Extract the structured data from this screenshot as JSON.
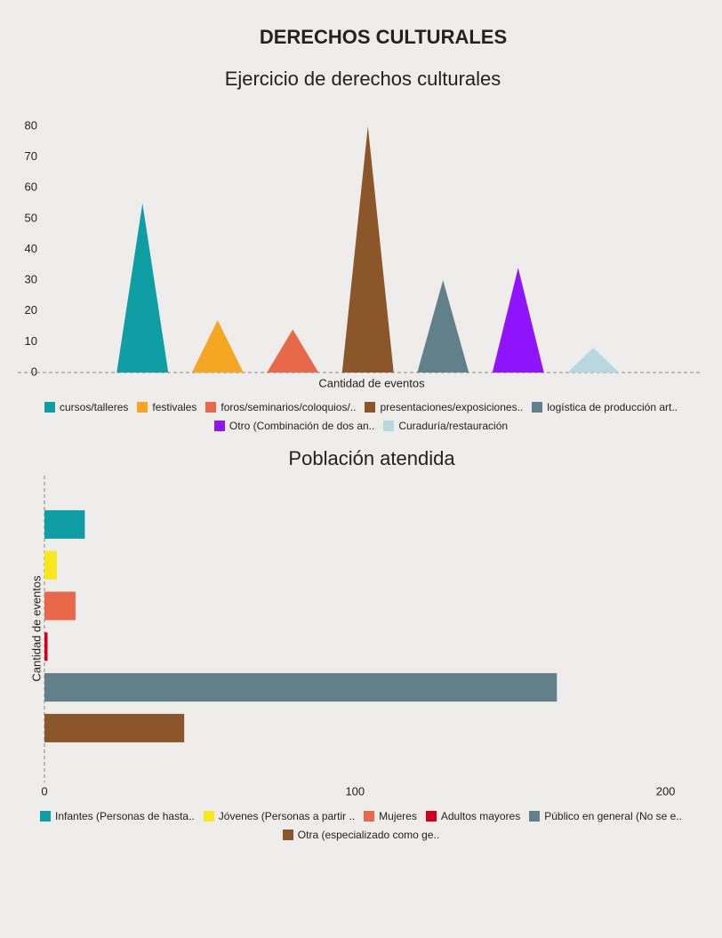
{
  "title": "DERECHOS CULTURALES",
  "chart_data": [
    {
      "type": "triangle",
      "title": "Ejercicio de derechos culturales",
      "x_label": "Cantidad de eventos",
      "categories": [
        "cursos/talleres",
        "festivales",
        "foros/seminarios/coloquios/..",
        "presentaciones/exposiciones..",
        "logística de producción art..",
        "Otro (Combinación de dos an..",
        "Curaduría/restauración"
      ],
      "values": [
        55,
        17,
        14,
        80,
        30,
        34,
        8
      ],
      "colors": [
        "#0f9ea4",
        "#f5a623",
        "#e8694a",
        "#8b572a",
        "#62808a",
        "#9013fe",
        "#b8d8e0"
      ],
      "ylim": [
        0,
        80
      ],
      "yticks": [
        0,
        10,
        20,
        30,
        40,
        50,
        60,
        70,
        80
      ]
    },
    {
      "type": "hbar",
      "title": "Población atendida",
      "y_label": "Cantidad de eventos",
      "categories": [
        "Infantes (Personas de hasta..",
        "Jóvenes (Personas a partir ..",
        "Mujeres",
        "Adultos mayores",
        "Público en general (No se e..",
        "Otra (especializado como ge.."
      ],
      "values": [
        13,
        4,
        10,
        1,
        165,
        45
      ],
      "colors": [
        "#0f9ea4",
        "#f8e71c",
        "#e8694a",
        "#d0021b",
        "#62808a",
        "#8b572a"
      ],
      "xlim": [
        0,
        211
      ],
      "xticks": [
        0,
        100,
        200
      ]
    }
  ]
}
